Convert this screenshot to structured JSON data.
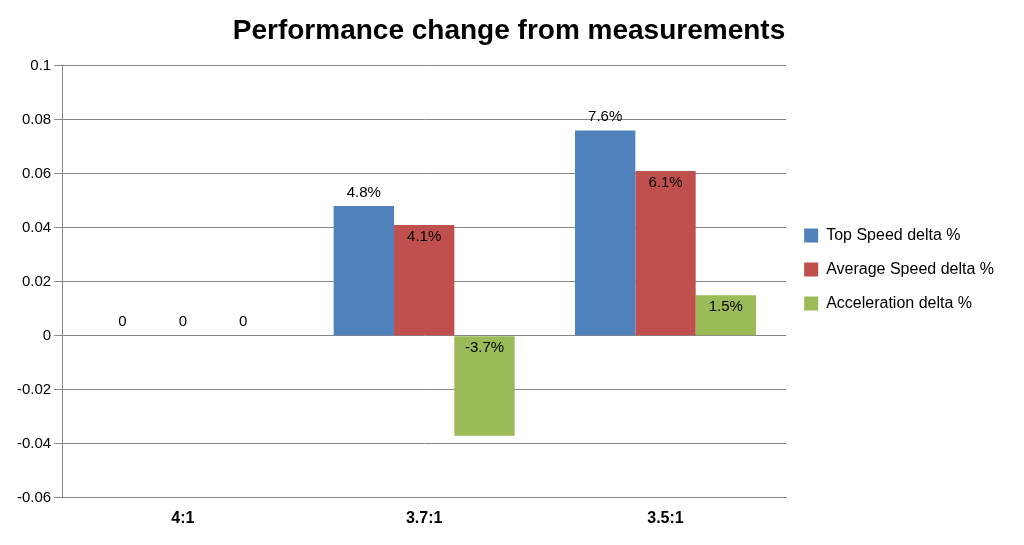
{
  "chart_data": {
    "type": "bar",
    "title": "Performance change from measurements",
    "categories": [
      "4:1",
      "3.7:1",
      "3.5:1"
    ],
    "series": [
      {
        "name": "Top Speed delta %",
        "color": "#4f81bd",
        "values": [
          0,
          0.048,
          0.076
        ],
        "value_labels": [
          "0",
          "4.8%",
          "7.6%"
        ]
      },
      {
        "name": "Average Speed delta %",
        "color": "#c0504d",
        "values": [
          0,
          0.041,
          0.061
        ],
        "value_labels": [
          "0",
          "4.1%",
          "6.1%"
        ]
      },
      {
        "name": "Acceleration delta %",
        "color": "#9bbb59",
        "values": [
          0,
          -0.037,
          0.015
        ],
        "value_labels": [
          "0",
          "-3.7%",
          "1.5%"
        ]
      }
    ],
    "ylim": [
      -0.06,
      0.1
    ],
    "yticks": [
      -0.06,
      -0.04,
      -0.02,
      0,
      0.02,
      0.04,
      0.06,
      0.08,
      0.1
    ],
    "grid": true,
    "legend": "right",
    "data_labels": true
  }
}
